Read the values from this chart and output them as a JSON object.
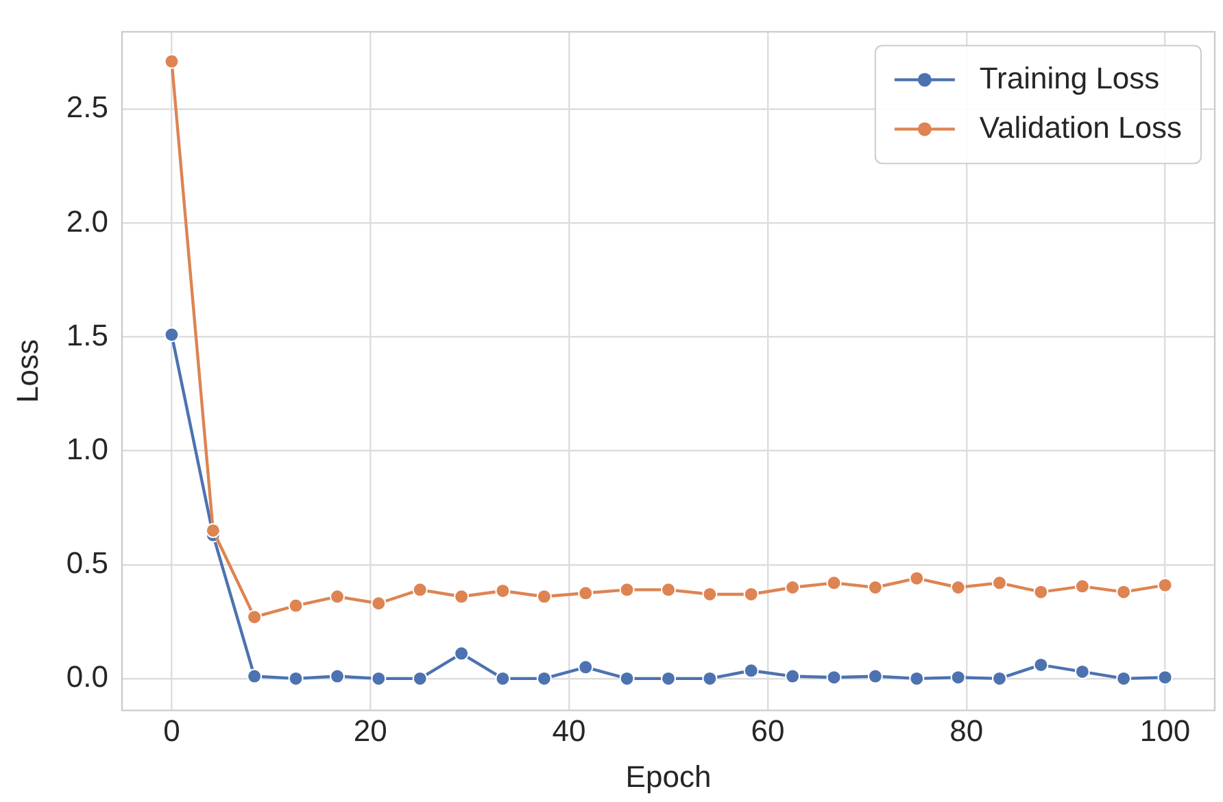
{
  "chart_data": {
    "type": "line",
    "xlabel": "Epoch",
    "ylabel": "Loss",
    "x": [
      0,
      4.17,
      8.33,
      12.5,
      16.67,
      20.83,
      25,
      29.17,
      33.33,
      37.5,
      41.67,
      45.83,
      50,
      54.17,
      58.33,
      62.5,
      66.67,
      70.83,
      75,
      79.17,
      83.33,
      87.5,
      91.67,
      95.83,
      100
    ],
    "series": [
      {
        "name": "Training Loss",
        "color": "#4c72b0",
        "values": [
          1.51,
          0.63,
          0.01,
          0,
          0.01,
          0,
          0,
          0.11,
          0,
          0,
          0.05,
          0,
          0,
          0,
          0.035,
          0.01,
          0.005,
          0.01,
          0,
          0.005,
          0,
          0.06,
          0.03,
          0,
          0.005
        ]
      },
      {
        "name": "Validation Loss",
        "color": "#dd8452",
        "values": [
          2.71,
          0.65,
          0.27,
          0.32,
          0.36,
          0.33,
          0.39,
          0.36,
          0.385,
          0.36,
          0.375,
          0.39,
          0.39,
          0.37,
          0.37,
          0.4,
          0.42,
          0.4,
          0.44,
          0.4,
          0.42,
          0.38,
          0.405,
          0.38,
          0.41
        ]
      }
    ],
    "xlim": [
      -5,
      105
    ],
    "xticks": [
      0,
      20,
      40,
      60,
      80,
      100
    ],
    "ylim": [
      -0.14,
      2.84
    ],
    "yticks": [
      {
        "value": 0,
        "label": "0.0"
      },
      {
        "value": 0.5,
        "label": "0.5"
      },
      {
        "value": 1,
        "label": "1.0"
      },
      {
        "value": 1.5,
        "label": "1.5"
      },
      {
        "value": 2,
        "label": "2.0"
      },
      {
        "value": 2.5,
        "label": "2.5"
      }
    ],
    "grid": true,
    "legend": "top right",
    "marker": "circle",
    "line_style": "solid"
  }
}
